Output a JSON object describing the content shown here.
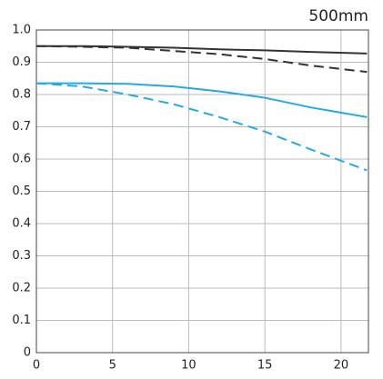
{
  "chart_data": {
    "type": "line",
    "title": "500mm",
    "x": [
      0,
      3,
      6,
      9,
      12,
      15,
      18,
      21.7
    ],
    "series": [
      {
        "color": "#333333",
        "style": "solid",
        "values": [
          0.95,
          0.95,
          0.948,
          0.945,
          0.94,
          0.937,
          0.932,
          0.927
        ]
      },
      {
        "color": "#333333",
        "style": "dashed",
        "values": [
          0.95,
          0.948,
          0.945,
          0.935,
          0.925,
          0.91,
          0.89,
          0.87
        ]
      },
      {
        "color": "#29a8e0",
        "style": "solid",
        "values": [
          0.835,
          0.835,
          0.833,
          0.825,
          0.81,
          0.79,
          0.76,
          0.73
        ]
      },
      {
        "color": "#29a8e0",
        "style": "dashed",
        "values": [
          0.835,
          0.825,
          0.8,
          0.77,
          0.73,
          0.685,
          0.63,
          0.565
        ]
      }
    ],
    "xlim": [
      0,
      21.8
    ],
    "xticks": [
      0,
      5,
      10,
      15,
      20
    ],
    "ylim": [
      0,
      1
    ],
    "yticks": [
      0,
      0.1,
      0.2,
      0.3,
      0.4,
      0.5,
      0.6,
      0.7,
      0.8,
      0.9,
      {
        "value": 1,
        "label": "1.0"
      }
    ],
    "grid": true
  }
}
